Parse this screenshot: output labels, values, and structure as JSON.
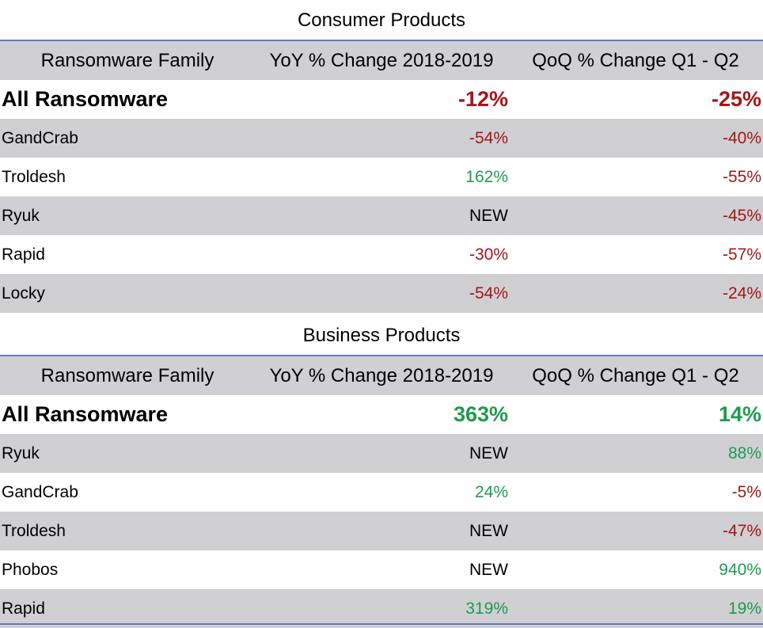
{
  "colors": {
    "negative": "#a31616",
    "positive": "#1e9b4f",
    "row_gray": "#d0d0d3",
    "rule_blue": "#5b7fbf"
  },
  "consumer": {
    "title": "Consumer Products",
    "headers": {
      "family": "Ransomware Family",
      "yoy": "YoY % Change 2018-2019",
      "qoq": "QoQ % Change Q1 - Q2"
    },
    "all": {
      "name": "All Ransomware",
      "yoy": "-12%",
      "qoq": "-25%",
      "yoy_tone": "neg",
      "qoq_tone": "neg"
    },
    "rows": [
      {
        "name": "GandCrab",
        "yoy": "-54%",
        "qoq": "-40%",
        "yoy_tone": "neg",
        "qoq_tone": "neg"
      },
      {
        "name": "Troldesh",
        "yoy": "162%",
        "qoq": "-55%",
        "yoy_tone": "pos",
        "qoq_tone": "neg"
      },
      {
        "name": "Ryuk",
        "yoy": "NEW",
        "qoq": "-45%",
        "yoy_tone": "neutral",
        "qoq_tone": "neg"
      },
      {
        "name": "Rapid",
        "yoy": "-30%",
        "qoq": "-57%",
        "yoy_tone": "neg",
        "qoq_tone": "neg"
      },
      {
        "name": "Locky",
        "yoy": "-54%",
        "qoq": "-24%",
        "yoy_tone": "neg",
        "qoq_tone": "neg"
      }
    ]
  },
  "business": {
    "title": "Business Products",
    "headers": {
      "family": "Ransomware Family",
      "yoy": "YoY % Change 2018-2019",
      "qoq": "QoQ % Change Q1 - Q2"
    },
    "all": {
      "name": "All Ransomware",
      "yoy": "363%",
      "qoq": "14%",
      "yoy_tone": "pos",
      "qoq_tone": "pos"
    },
    "rows": [
      {
        "name": "Ryuk",
        "yoy": "NEW",
        "qoq": "88%",
        "yoy_tone": "neutral",
        "qoq_tone": "pos"
      },
      {
        "name": "GandCrab",
        "yoy": "24%",
        "qoq": "-5%",
        "yoy_tone": "pos",
        "qoq_tone": "neg"
      },
      {
        "name": "Troldesh",
        "yoy": "NEW",
        "qoq": "-47%",
        "yoy_tone": "neutral",
        "qoq_tone": "neg"
      },
      {
        "name": "Phobos",
        "yoy": "NEW",
        "qoq": "940%",
        "yoy_tone": "neutral",
        "qoq_tone": "pos"
      },
      {
        "name": "Rapid",
        "yoy": "319%",
        "qoq": "19%",
        "yoy_tone": "pos",
        "qoq_tone": "pos"
      }
    ]
  }
}
